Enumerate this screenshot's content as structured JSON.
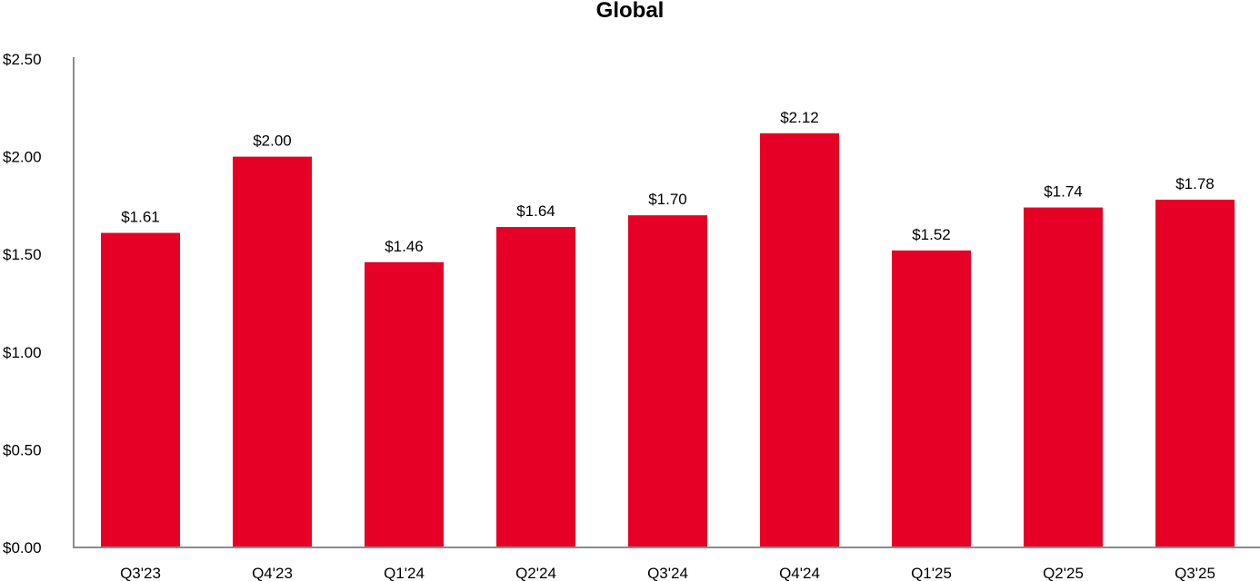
{
  "chart_data": {
    "type": "bar",
    "title": "Global",
    "xlabel": "",
    "ylabel": "",
    "categories": [
      "Q3'23",
      "Q4'23",
      "Q1'24",
      "Q2'24",
      "Q3'24",
      "Q4'24",
      "Q1'25",
      "Q2'25",
      "Q3'25"
    ],
    "values": [
      1.61,
      2.0,
      1.46,
      1.64,
      1.7,
      2.12,
      1.52,
      1.74,
      1.78
    ],
    "data_labels": [
      "$1.61",
      "$2.00",
      "$1.46",
      "$1.64",
      "$1.70",
      "$2.12",
      "$1.52",
      "$1.74",
      "$1.78"
    ],
    "ylim": [
      0,
      2.5
    ],
    "yticks": [
      0,
      0.5,
      1.0,
      1.5,
      2.0,
      2.5
    ],
    "ytick_labels": [
      "$0.00",
      "$0.50",
      "$1.00",
      "$1.50",
      "$2.00",
      "$2.50"
    ],
    "grid": false,
    "legend": "none",
    "colors": {
      "bar": "#E60026",
      "axis": "#8C8C8C",
      "text": "#000000"
    }
  }
}
